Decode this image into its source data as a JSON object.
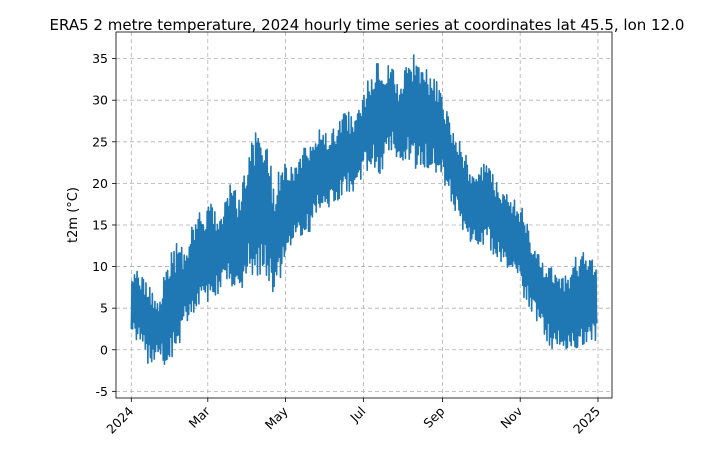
{
  "chart_data": {
    "type": "line",
    "title": "ERA5 2 metre temperature, 2024 hourly time series at coordinates lat 45.5, lon 12.0",
    "xlabel": "",
    "ylabel": "t2m (°C)",
    "ylim": [
      -5.8,
      38.2
    ],
    "yticks": [
      -5,
      0,
      5,
      10,
      15,
      20,
      25,
      30,
      35
    ],
    "xlim": [
      "2023-12-20",
      "2025-01-12"
    ],
    "xticks": [
      {
        "date": "2024-01-01",
        "label": "2024"
      },
      {
        "date": "2024-03-01",
        "label": "Mar"
      },
      {
        "date": "2024-05-01",
        "label": "May"
      },
      {
        "date": "2024-07-01",
        "label": "Jul"
      },
      {
        "date": "2024-09-01",
        "label": "Sep"
      },
      {
        "date": "2024-11-01",
        "label": "Nov"
      },
      {
        "date": "2025-01-01",
        "label": "2025"
      }
    ],
    "grid": true,
    "color": "#1f77b4",
    "series": [
      {
        "x": [
          "2024-01-01",
          "2024-01-08",
          "2024-01-15",
          "2024-01-22",
          "2024-01-29",
          "2024-02-05",
          "2024-02-12",
          "2024-02-19",
          "2024-02-26",
          "2024-03-04",
          "2024-03-11",
          "2024-03-18",
          "2024-03-25",
          "2024-04-01",
          "2024-04-08",
          "2024-04-15",
          "2024-04-22",
          "2024-04-29",
          "2024-05-06",
          "2024-05-13",
          "2024-05-20",
          "2024-05-27",
          "2024-06-03",
          "2024-06-10",
          "2024-06-17",
          "2024-06-24",
          "2024-07-01",
          "2024-07-08",
          "2024-07-15",
          "2024-07-22",
          "2024-07-29",
          "2024-08-05",
          "2024-08-12",
          "2024-08-19",
          "2024-08-26",
          "2024-09-02",
          "2024-09-09",
          "2024-09-16",
          "2024-09-23",
          "2024-09-30",
          "2024-10-07",
          "2024-10-14",
          "2024-10-21",
          "2024-10-28",
          "2024-11-04",
          "2024-11-11",
          "2024-11-18",
          "2024-11-25",
          "2024-12-02",
          "2024-12-09",
          "2024-12-16",
          "2024-12-23",
          "2024-12-31"
        ],
        "min": [
          2,
          0,
          -2,
          -1,
          -3,
          -1,
          3,
          4,
          5,
          5,
          7,
          8,
          6,
          9,
          8,
          9,
          6,
          9,
          12,
          13,
          14,
          16,
          17,
          17,
          19,
          18,
          21,
          22,
          21,
          24,
          22,
          23,
          21,
          22,
          21,
          20,
          17,
          14,
          13,
          12,
          12,
          11,
          10,
          9,
          6,
          4,
          2,
          0,
          0,
          -1,
          -1,
          0,
          1
        ],
        "max": [
          9,
          10,
          8,
          6,
          11,
          13,
          12,
          16,
          17,
          18,
          16,
          20,
          19,
          23,
          27,
          26,
          20,
          23,
          22,
          24,
          25,
          27,
          26,
          27,
          29,
          28,
          31,
          34,
          35,
          35,
          32,
          35,
          36,
          34,
          33,
          30,
          27,
          25,
          22,
          22,
          23,
          20,
          19,
          18,
          17,
          13,
          11,
          10,
          9,
          10,
          12,
          12,
          10
        ]
      }
    ]
  }
}
